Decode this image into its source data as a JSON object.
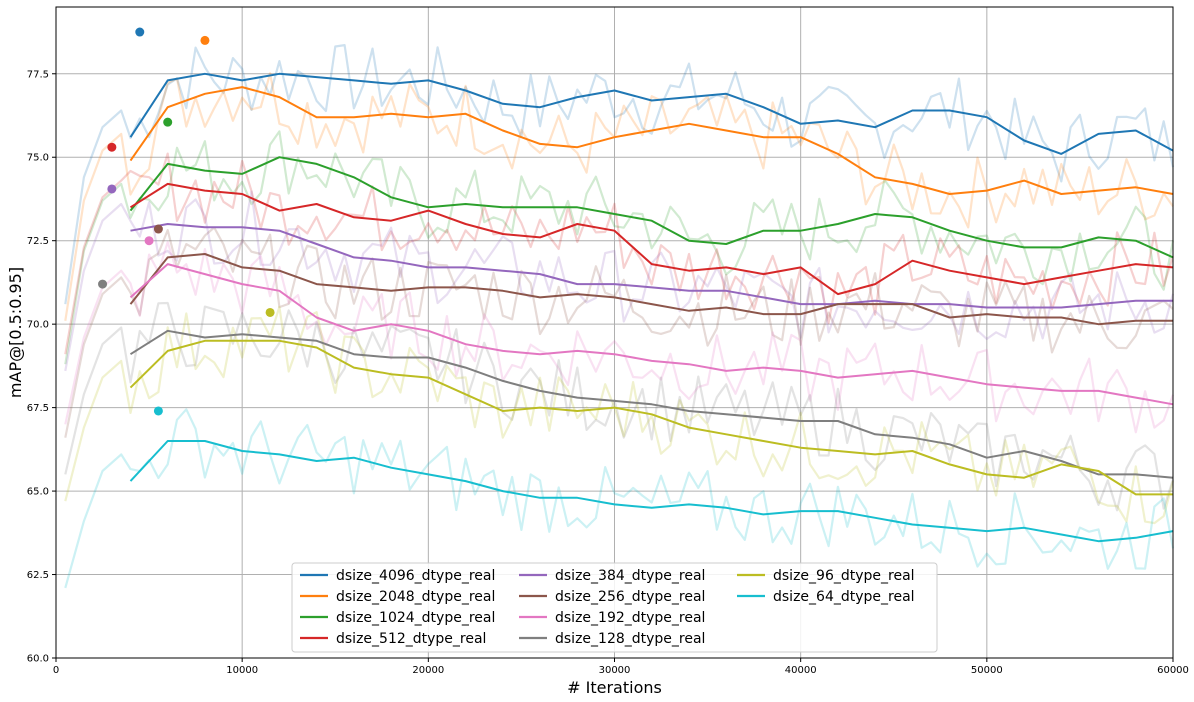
{
  "chart_data": {
    "type": "line",
    "title": "",
    "xlabel": "# Iterations",
    "ylabel": "mAP@[0.5:0.95]",
    "xlim": [
      0,
      60000
    ],
    "ylim": [
      60.0,
      79.5
    ],
    "x_ticks": [
      0,
      10000,
      20000,
      30000,
      40000,
      50000,
      60000
    ],
    "y_ticks": [
      60.0,
      62.5,
      65.0,
      67.5,
      70.0,
      72.5,
      75.0,
      77.5
    ],
    "grid": true,
    "legend_position": "lower-center",
    "legend_columns": 3,
    "x": [
      4000,
      6000,
      8000,
      10000,
      12000,
      14000,
      16000,
      18000,
      20000,
      22000,
      24000,
      26000,
      28000,
      30000,
      32000,
      34000,
      36000,
      38000,
      40000,
      42000,
      44000,
      46000,
      48000,
      50000,
      52000,
      54000,
      56000,
      58000,
      60000
    ],
    "series": [
      {
        "name": "dsize_4096_dtype_real",
        "color": "#1f77b4",
        "peak": [
          4500,
          78.75
        ],
        "values": [
          75.6,
          77.3,
          77.5,
          77.3,
          77.5,
          77.4,
          77.3,
          77.2,
          77.3,
          77.0,
          76.6,
          76.5,
          76.8,
          77.0,
          76.7,
          76.8,
          76.9,
          76.5,
          76.0,
          76.1,
          75.9,
          76.4,
          76.4,
          76.2,
          75.5,
          75.1,
          75.7,
          75.8,
          75.2
        ]
      },
      {
        "name": "dsize_2048_dtype_real",
        "color": "#ff7f0e",
        "peak": [
          8000,
          78.5
        ],
        "values": [
          74.9,
          76.5,
          76.9,
          77.1,
          76.8,
          76.2,
          76.2,
          76.3,
          76.2,
          76.3,
          75.8,
          75.4,
          75.3,
          75.6,
          75.8,
          76.0,
          75.8,
          75.6,
          75.6,
          75.1,
          74.4,
          74.2,
          73.9,
          74.0,
          74.3,
          73.9,
          74.0,
          74.1,
          73.9
        ]
      },
      {
        "name": "dsize_1024_dtype_real",
        "color": "#2ca02c",
        "peak": [
          6000,
          76.05
        ],
        "values": [
          73.4,
          74.8,
          74.6,
          74.5,
          75.0,
          74.8,
          74.4,
          73.8,
          73.5,
          73.6,
          73.5,
          73.5,
          73.5,
          73.3,
          73.1,
          72.5,
          72.4,
          72.8,
          72.8,
          73.0,
          73.3,
          73.2,
          72.8,
          72.5,
          72.3,
          72.3,
          72.6,
          72.5,
          72.0
        ]
      },
      {
        "name": "dsize_512_dtype_real",
        "color": "#d62728",
        "peak": [
          3000,
          75.3
        ],
        "values": [
          73.5,
          74.2,
          74.0,
          73.9,
          73.4,
          73.6,
          73.2,
          73.1,
          73.4,
          73.0,
          72.7,
          72.6,
          73.0,
          72.8,
          71.8,
          71.6,
          71.7,
          71.5,
          71.7,
          70.9,
          71.2,
          71.9,
          71.6,
          71.4,
          71.2,
          71.4,
          71.6,
          71.8,
          71.7
        ]
      },
      {
        "name": "dsize_384_dtype_real",
        "color": "#9467bd",
        "peak": [
          3000,
          74.05
        ],
        "values": [
          72.8,
          73.0,
          72.9,
          72.9,
          72.8,
          72.4,
          72.0,
          71.9,
          71.7,
          71.7,
          71.6,
          71.5,
          71.2,
          71.2,
          71.1,
          71.0,
          71.0,
          70.8,
          70.6,
          70.6,
          70.7,
          70.6,
          70.6,
          70.5,
          70.5,
          70.5,
          70.6,
          70.7,
          70.7
        ]
      },
      {
        "name": "dsize_256_dtype_real",
        "color": "#8c564b",
        "peak": [
          5500,
          72.85
        ],
        "values": [
          70.6,
          72.0,
          72.1,
          71.7,
          71.6,
          71.2,
          71.1,
          71.0,
          71.1,
          71.1,
          71.0,
          70.8,
          70.9,
          70.8,
          70.6,
          70.4,
          70.5,
          70.3,
          70.3,
          70.6,
          70.6,
          70.6,
          70.2,
          70.3,
          70.2,
          70.2,
          70.0,
          70.1,
          70.1
        ]
      },
      {
        "name": "dsize_192_dtype_real",
        "color": "#e377c2",
        "peak": [
          5000,
          72.5
        ],
        "values": [
          70.8,
          71.8,
          71.5,
          71.2,
          71.0,
          70.2,
          69.8,
          70.0,
          69.8,
          69.4,
          69.2,
          69.1,
          69.2,
          69.1,
          68.9,
          68.8,
          68.6,
          68.7,
          68.6,
          68.4,
          68.5,
          68.6,
          68.4,
          68.2,
          68.1,
          68.0,
          68.0,
          67.8,
          67.6
        ]
      },
      {
        "name": "dsize_128_dtype_real",
        "color": "#7f7f7f",
        "peak": [
          2500,
          71.2
        ],
        "values": [
          69.1,
          69.8,
          69.6,
          69.7,
          69.6,
          69.5,
          69.1,
          69.0,
          69.0,
          68.7,
          68.3,
          68.0,
          67.8,
          67.7,
          67.6,
          67.4,
          67.3,
          67.2,
          67.1,
          67.1,
          66.7,
          66.6,
          66.4,
          66.0,
          66.2,
          65.9,
          65.5,
          65.5,
          65.4
        ]
      },
      {
        "name": "dsize_96_dtype_real",
        "color": "#bcbd22",
        "peak": [
          11500,
          70.35
        ],
        "values": [
          68.1,
          69.2,
          69.5,
          69.5,
          69.5,
          69.3,
          68.7,
          68.5,
          68.4,
          67.9,
          67.4,
          67.5,
          67.4,
          67.5,
          67.3,
          66.9,
          66.7,
          66.5,
          66.3,
          66.2,
          66.1,
          66.2,
          65.8,
          65.5,
          65.4,
          65.8,
          65.6,
          64.9,
          64.9
        ]
      },
      {
        "name": "dsize_64_dtype_real",
        "color": "#17becf",
        "peak": [
          5500,
          67.4
        ],
        "values": [
          65.3,
          66.5,
          66.5,
          66.2,
          66.1,
          65.9,
          66.0,
          65.7,
          65.5,
          65.3,
          65.0,
          64.8,
          64.8,
          64.6,
          64.5,
          64.6,
          64.5,
          64.3,
          64.4,
          64.4,
          64.2,
          64.0,
          63.9,
          63.8,
          63.9,
          63.7,
          63.5,
          63.6,
          63.8
        ]
      }
    ]
  }
}
